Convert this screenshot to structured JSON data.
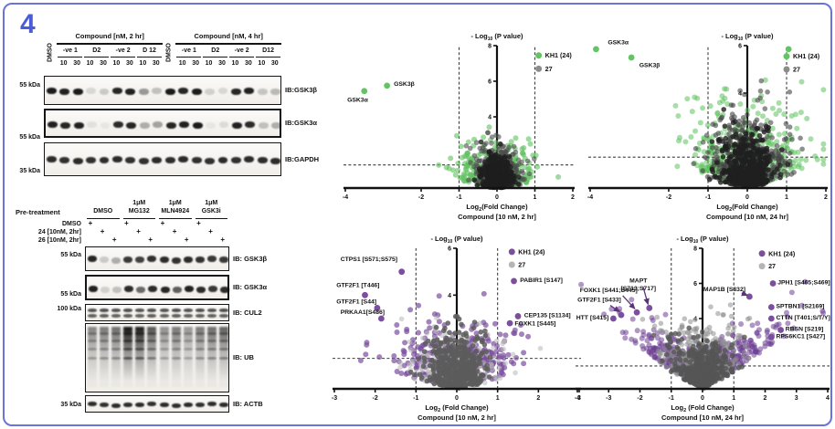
{
  "figure_label": "4",
  "accent": {
    "border": "#6a73dd",
    "number": "#4a5cd8"
  },
  "western_top": {
    "groups": [
      {
        "header": "Compound [nM, 2 hr]",
        "dmso": "DMSO",
        "subgroups": [
          "-ve 1",
          "D2",
          "-ve 2",
          "D 12"
        ]
      },
      {
        "header": "Compound [nM, 4 hr]",
        "dmso": "DMSO",
        "subgroups": [
          "-ve 1",
          "D2",
          "-ve 2",
          "D12"
        ]
      }
    ],
    "doses": [
      "10",
      "30"
    ],
    "blots": [
      {
        "label": "IB:GSK3β",
        "marker": "55 kDa",
        "type": "band",
        "thick": false,
        "bands": [
          0.95,
          0.92,
          0.95,
          0.12,
          0.18,
          0.9,
          0.93,
          0.4,
          0.22,
          0.95,
          0.9,
          0.95,
          0.15,
          0.12,
          0.9,
          0.92,
          0.2,
          0.25
        ]
      },
      {
        "label": "IB:GSK3α",
        "marker": "55 kDa",
        "type": "band",
        "thick": true,
        "bands": [
          0.92,
          0.9,
          0.92,
          0.08,
          0.05,
          0.88,
          0.9,
          0.3,
          0.35,
          0.9,
          0.92,
          0.95,
          0.05,
          0.1,
          0.92,
          0.88,
          0.22,
          0.3
        ]
      },
      {
        "label": "IB:GAPDH",
        "marker": "35 kDa",
        "type": "band",
        "thick": false,
        "bands": [
          0.88,
          0.86,
          0.88,
          0.85,
          0.87,
          0.88,
          0.86,
          0.85,
          0.88,
          0.87,
          0.88,
          0.86,
          0.85,
          0.88,
          0.86,
          0.88,
          0.87,
          0.88
        ]
      }
    ]
  },
  "western_bottom": {
    "pretreatment_label": "Pre-treatment",
    "columns": [
      [
        "",
        "DMSO"
      ],
      [
        "1μM",
        "MG132"
      ],
      [
        "1μM",
        "MLN4924"
      ],
      [
        "1μM",
        "GSK3i"
      ]
    ],
    "rows": [
      "DMSO",
      "24 [10nM, 2hr]",
      "26 [10nM, 2hr]"
    ],
    "plus_sign": "+",
    "blots": [
      {
        "label": "IB: GSK3β",
        "marker": "55 kDa",
        "type": "band",
        "thick": false,
        "bands": [
          0.9,
          0.18,
          0.3,
          0.82,
          0.78,
          0.85,
          0.88,
          0.85,
          0.88,
          0.85,
          0.82,
          0.82
        ]
      },
      {
        "label": "IB: GSK3α",
        "marker": "55 kDa",
        "type": "band",
        "thick": true,
        "bands": [
          0.92,
          0.15,
          0.22,
          0.88,
          0.6,
          0.88,
          0.9,
          0.65,
          0.92,
          0.88,
          0.82,
          0.88
        ]
      },
      {
        "label": "IB: CUL2",
        "marker": "100 kDa",
        "type": "doublet",
        "thick": false,
        "bands": [
          0.7,
          0.72,
          0.7,
          0.72,
          0.7,
          0.72,
          0.7,
          0.72,
          0.7,
          0.72,
          0.7,
          0.72
        ]
      },
      {
        "label": "IB: UB",
        "marker": "",
        "type": "smear",
        "thick": false,
        "bands": [
          0.5,
          0.55,
          0.6,
          0.98,
          0.95,
          0.7,
          0.45,
          0.55,
          0.42,
          0.55,
          0.6,
          0.65
        ]
      },
      {
        "label": "IB: ACTB",
        "marker": "35 kDa",
        "type": "band",
        "thick": false,
        "bands": [
          0.88,
          0.86,
          0.88,
          0.87,
          0.88,
          0.86,
          0.88,
          0.87,
          0.88,
          0.86,
          0.88,
          0.88
        ]
      }
    ]
  },
  "chart_data": [
    {
      "id": "volcano-2hr-global",
      "type": "scatter",
      "variant": "volcano",
      "title": {
        "pre": "- Log",
        "sub": "10",
        "post": " (P value)"
      },
      "xlabel": {
        "pre": "Log",
        "sub": "2",
        "post": "(Fold Change)"
      },
      "condition": "Compound [10 nM, 2 hr]",
      "xlim": [
        -4,
        2
      ],
      "ylim": [
        0,
        8
      ],
      "xticks": [
        -4,
        -2,
        -1,
        0,
        1,
        2
      ],
      "yticks": [
        8,
        6,
        4,
        1
      ],
      "thresholds": {
        "x": [
          -1,
          1
        ],
        "y": 1.3
      },
      "legend": {
        "x": 1.1,
        "y": 7.45,
        "dy": 0.75,
        "items": [
          {
            "label": "KH1 (24)",
            "color": "#62c462"
          },
          {
            "label": "27",
            "color": "#8c8c8c"
          }
        ]
      },
      "series": [
        {
          "name": "KH1 (24)",
          "color": "#5fc25f",
          "opacity": 0.6,
          "n": 290,
          "sd": 0.5,
          "yScale": 1.15,
          "slope": 0.35,
          "clip": 4.4,
          "r": 3.0,
          "seed": 101
        },
        {
          "name": "27",
          "color": "#4d4d4d",
          "opacity": 0.6,
          "n": 360,
          "sd": 0.3,
          "yScale": 1.05,
          "slope": 0.3,
          "clip": 4.2,
          "r": 2.8,
          "seed": 102
        },
        {
          "name": "core",
          "color": "#1e1e1e",
          "opacity": 0.8,
          "n": 420,
          "sd": 0.2,
          "yScale": 0.8,
          "slope": 0.25,
          "clip": 3.3,
          "r": 2.8,
          "seed": 103
        }
      ],
      "points": [
        {
          "name": "GSK3β",
          "x": -2.9,
          "y": 5.75,
          "color": "#62c462",
          "label": {
            "x": -2.72,
            "y": 5.75,
            "anchor": "start"
          }
        },
        {
          "name": "GSK3α",
          "x": -3.5,
          "y": 5.45,
          "color": "#62c462",
          "label": {
            "x": -3.95,
            "y": 4.85,
            "anchor": "start"
          }
        }
      ]
    },
    {
      "id": "volcano-24hr-global",
      "type": "scatter",
      "variant": "volcano",
      "title": {
        "pre": "- Log",
        "sub": "10",
        "post": " (P value)"
      },
      "xlabel": {
        "pre": "Log",
        "sub": "2",
        "post": "(Fold Change)"
      },
      "condition": "Compound [10 nM, 24 hr]",
      "xlim": [
        -4,
        2
      ],
      "ylim": [
        0,
        6
      ],
      "xticks": [
        -4,
        -2,
        -1,
        0,
        1,
        2
      ],
      "yticks": [
        6,
        4,
        2
      ],
      "thresholds": {
        "x": [
          -1,
          1
        ],
        "y": 1.3
      },
      "legend": {
        "x": 1.0,
        "y": 5.55,
        "dy": 0.55,
        "items": [
          {
            "label": "KH1 (24)",
            "color": "#62c462"
          },
          {
            "label": "27",
            "color": "#8c8c8c"
          }
        ]
      },
      "series": [
        {
          "name": "KH1 (24)",
          "color": "#5fc25f",
          "opacity": 0.55,
          "n": 400,
          "sd": 0.72,
          "yScale": 1.45,
          "slope": 0.5,
          "clip": 5.1,
          "r": 3.0,
          "seed": 201
        },
        {
          "name": "27",
          "color": "#454545",
          "opacity": 0.6,
          "n": 430,
          "sd": 0.5,
          "yScale": 1.3,
          "slope": 0.45,
          "clip": 4.9,
          "r": 2.8,
          "seed": 202
        },
        {
          "name": "core",
          "color": "#1f1f1f",
          "opacity": 0.8,
          "n": 400,
          "sd": 0.32,
          "yScale": 1.0,
          "slope": 0.35,
          "clip": 3.9,
          "r": 2.8,
          "seed": 203
        }
      ],
      "points": [
        {
          "name": "GSK3α",
          "x": -3.85,
          "y": 5.85,
          "color": "#62c462",
          "label": {
            "x": -3.55,
            "y": 6.05,
            "anchor": "start"
          }
        },
        {
          "name": "GSK3β",
          "x": -2.95,
          "y": 5.5,
          "color": "#62c462",
          "label": {
            "x": -2.75,
            "y": 5.1,
            "anchor": "start"
          }
        },
        {
          "name": "",
          "x": 1.05,
          "y": 5.85,
          "color": "#62c462"
        }
      ]
    },
    {
      "id": "volcano-2hr-phospho",
      "type": "scatter",
      "variant": "volcano",
      "title": {
        "pre": "- Log",
        "sub": "10",
        "post": " (P value)"
      },
      "xlabel": {
        "pre": "Log",
        "sub": "2",
        "post": " (Fold Change)"
      },
      "condition": "Compound [10 nM, 2 hr]",
      "xlim": [
        -3,
        3
      ],
      "ylim": [
        0,
        6
      ],
      "xticks": [
        -3,
        -2,
        -1,
        0,
        1,
        2,
        3
      ],
      "yticks": [
        6,
        4,
        2
      ],
      "thresholds": {
        "x": [
          -1,
          1
        ],
        "y": 1.3
      },
      "legend": {
        "x": 1.35,
        "y": 5.85,
        "dy": 0.55,
        "items": [
          {
            "label": "KH1 (24)",
            "color": "#7b4e9e"
          },
          {
            "label": "27",
            "color": "#b5b5b5"
          }
        ]
      },
      "series": [
        {
          "name": "KH1 (24)",
          "color": "#7b4e9e",
          "opacity": 0.7,
          "n": 340,
          "sd": 0.75,
          "yScale": 1.2,
          "slope": 0.45,
          "clip": 4.5,
          "r": 3.0,
          "seed": 301
        },
        {
          "name": "27",
          "color": "#b8b8b8",
          "opacity": 0.55,
          "n": 270,
          "sd": 0.55,
          "yScale": 1.1,
          "slope": 0.35,
          "clip": 4.1,
          "r": 2.8,
          "seed": 302
        },
        {
          "name": "core",
          "color": "#5c5c5c",
          "opacity": 0.85,
          "n": 500,
          "sd": 0.34,
          "yScale": 1.0,
          "slope": 0.3,
          "clip": 3.5,
          "r": 2.8,
          "seed": 303
        }
      ],
      "points": [
        {
          "name": "CTPS1 [S571;S575]",
          "x": -1.35,
          "y": 5.0,
          "color": "#7b4e9e",
          "label": {
            "x": -2.85,
            "y": 5.45,
            "anchor": "start"
          }
        },
        {
          "name": "GTF2F1 [T446]",
          "x": -2.25,
          "y": 4.0,
          "color": "#7b4e9e",
          "label": {
            "x": -2.95,
            "y": 4.35,
            "anchor": "start"
          }
        },
        {
          "name": "GTF2F1 [S44]",
          "x": -1.95,
          "y": 3.45,
          "color": "#7b4e9e",
          "label": {
            "x": -2.95,
            "y": 3.65,
            "anchor": "start"
          }
        },
        {
          "name": "PRKAA1[S486]",
          "x": -1.85,
          "y": 3.0,
          "color": "#7b4e9e",
          "label": {
            "x": -2.85,
            "y": 3.2,
            "anchor": "start"
          }
        },
        {
          "name": "PABIR1 [S147]",
          "x": 1.4,
          "y": 4.6,
          "color": "#7b4e9e",
          "label": {
            "x": 1.55,
            "y": 4.55,
            "anchor": "start"
          }
        },
        {
          "name": "CEP135 [S1134]",
          "x": 1.5,
          "y": 3.1,
          "color": "#7b4e9e",
          "label": {
            "x": 1.65,
            "y": 3.05,
            "anchor": "start"
          }
        },
        {
          "name": "FOXK1 [S445]",
          "x": 1.3,
          "y": 2.8,
          "color": "#7b4e9e",
          "label": {
            "x": 1.42,
            "y": 2.7,
            "anchor": "start"
          }
        }
      ]
    },
    {
      "id": "volcano-24hr-phospho",
      "type": "scatter",
      "variant": "volcano",
      "title": {
        "pre": "- Log",
        "sub": "10",
        "post": " (P value)"
      },
      "xlabel": {
        "pre": "Log",
        "sub": "2",
        "post": " (Fold Change)"
      },
      "condition": "Compound [10 nM, 24 hr]",
      "xlim": [
        -4,
        4
      ],
      "ylim": [
        0,
        8
      ],
      "xticks": [
        -4,
        -3,
        -2,
        -1,
        0,
        1,
        2,
        3,
        4
      ],
      "yticks": [
        8,
        6,
        4,
        2
      ],
      "thresholds": {
        "x": [
          -1,
          1
        ],
        "y": 1.3
      },
      "legend": {
        "x": 1.9,
        "y": 7.7,
        "dy": 0.72,
        "items": [
          {
            "label": "KH1 (24)",
            "color": "#7b4e9e"
          },
          {
            "label": "27",
            "color": "#b5b5b5"
          }
        ]
      },
      "series": [
        {
          "name": "KH1 (24)",
          "color": "#6d3f94",
          "opacity": 0.55,
          "n": 520,
          "sd": 1.15,
          "yScale": 0.95,
          "slope": 1.1,
          "clip": 6.1,
          "r": 3.0,
          "seed": 401
        },
        {
          "name": "27",
          "color": "#8f8f8f",
          "opacity": 0.55,
          "n": 480,
          "sd": 0.55,
          "yScale": 1.45,
          "slope": 1.0,
          "clip": 4.8,
          "r": 2.8,
          "seed": 402
        },
        {
          "name": "core",
          "color": "#555555",
          "opacity": 0.8,
          "n": 440,
          "sd": 0.42,
          "yScale": 1.05,
          "slope": 0.9,
          "clip": 4.2,
          "r": 2.8,
          "seed": 403
        }
      ],
      "points": [
        {
          "name": "MAPT [S713;S717]",
          "x": -1.7,
          "y": 4.6,
          "color": "#7b4e9e",
          "label": {
            "x": -2.05,
            "y": 6.05,
            "anchor": "middle",
            "lines": [
              "MAPT",
              "[S713;S717]"
            ],
            "dy2": -0.45
          },
          "arrow": {
            "x1": -1.9,
            "y1": 5.8,
            "x2": -1.74,
            "y2": 4.8
          }
        },
        {
          "name": "FOXK1 [S441;S445]",
          "x": -2.1,
          "y": 4.35,
          "color": "#7b4e9e",
          "label": {
            "x": -3.0,
            "y": 5.5,
            "anchor": "middle"
          },
          "arrow": {
            "x1": -2.55,
            "y1": 5.3,
            "x2": -2.16,
            "y2": 4.55
          }
        },
        {
          "name": "GTF2F1 [S433]",
          "x": -2.6,
          "y": 4.2,
          "color": "#7b4e9e",
          "label": {
            "x": -3.3,
            "y": 4.95,
            "anchor": "middle"
          },
          "arrow": {
            "x1": -2.95,
            "y1": 4.75,
            "x2": -2.65,
            "y2": 4.38
          }
        },
        {
          "name": "HTT [S415]",
          "x": -2.85,
          "y": 4.0,
          "color": "#7b4e9e",
          "label": {
            "x": -3.0,
            "y": 3.95,
            "anchor": "end"
          }
        },
        {
          "name": "JPH1 [S465;S469]",
          "x": 2.25,
          "y": 6.0,
          "color": "#7b4e9e",
          "label": {
            "x": 2.4,
            "y": 5.95,
            "anchor": "start"
          }
        },
        {
          "name": "MAP1B [S832]",
          "x": 1.5,
          "y": 5.25,
          "color": "#7b4e9e",
          "label": {
            "x": 0.7,
            "y": 5.55,
            "anchor": "middle"
          },
          "arrow": {
            "x1": 1.25,
            "y1": 5.45,
            "x2": 1.44,
            "y2": 5.32
          }
        },
        {
          "name": "SPTBN1 [S2169]",
          "x": 2.2,
          "y": 4.65,
          "color": "#7b4e9e",
          "label": {
            "x": 2.35,
            "y": 4.6,
            "anchor": "start"
          }
        },
        {
          "name": "CTTN [T401;S/T/Y]",
          "x": 2.2,
          "y": 4.0,
          "color": "#7b4e9e",
          "label": {
            "x": 2.35,
            "y": 3.95,
            "anchor": "start"
          }
        },
        {
          "name": "RBSN [S219]",
          "x": 2.5,
          "y": 3.35,
          "color": "#7b4e9e",
          "label": {
            "x": 2.65,
            "y": 3.3,
            "anchor": "start"
          }
        },
        {
          "name": "RPS6KC1 [S427]",
          "x": 2.2,
          "y": 2.95,
          "color": "#7b4e9e",
          "label": {
            "x": 2.35,
            "y": 2.88,
            "anchor": "start"
          }
        }
      ]
    }
  ]
}
